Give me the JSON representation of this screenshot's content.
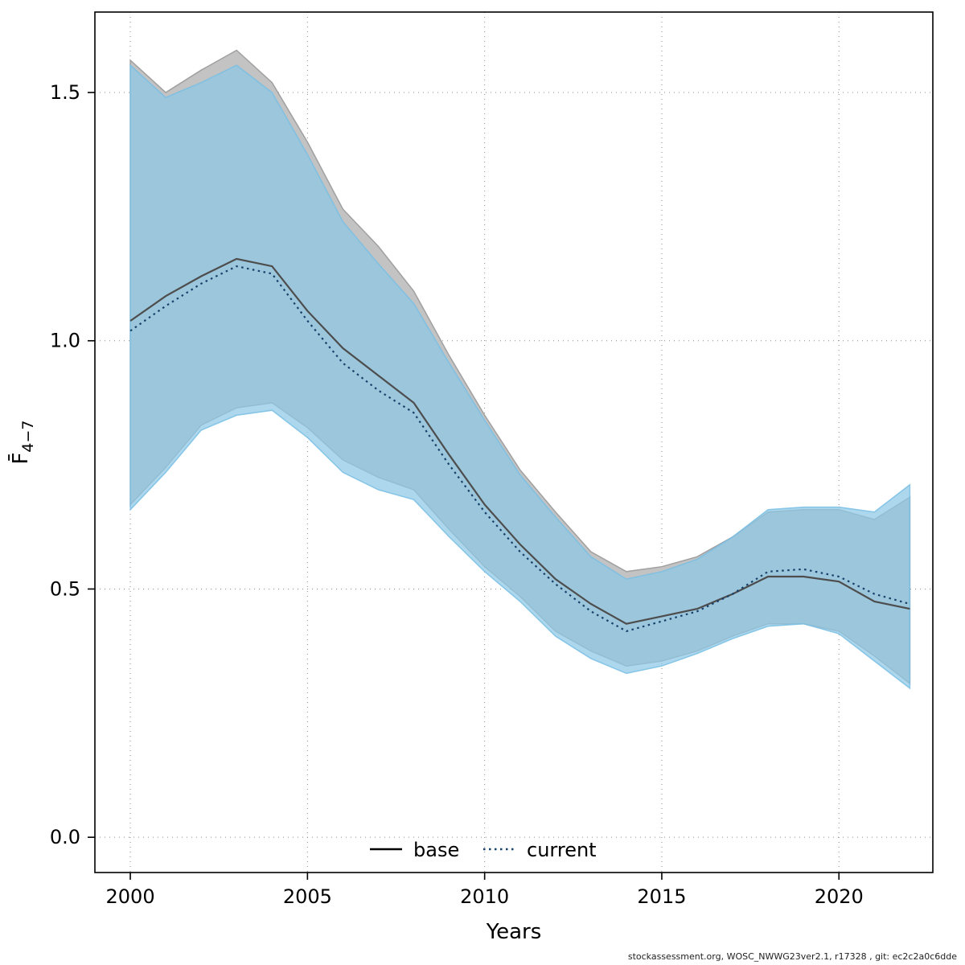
{
  "footer": {
    "credit": "stockassessment.org, WOSC_NWWG23ver2.1, r17328 , git: ec2c2a0c6dde"
  },
  "chart_data": {
    "type": "line",
    "title": "",
    "xlabel": "Years",
    "ylabel_main": "F̄",
    "ylabel_sub": "4−7",
    "x": [
      2000,
      2001,
      2002,
      2003,
      2004,
      2005,
      2006,
      2007,
      2008,
      2009,
      2010,
      2011,
      2012,
      2013,
      2014,
      2015,
      2016,
      2017,
      2018,
      2019,
      2020,
      2021,
      2022
    ],
    "series": [
      {
        "name": "base",
        "line_color": "#4d4d4d",
        "band_fill": "#c3c3c3",
        "band_edge": "#a0a0a0",
        "line_style": "solid",
        "values": [
          1.04,
          1.09,
          1.13,
          1.165,
          1.15,
          1.06,
          0.985,
          0.93,
          0.875,
          0.77,
          0.67,
          0.59,
          0.52,
          0.47,
          0.43,
          0.445,
          0.46,
          0.49,
          0.525,
          0.525,
          0.515,
          0.475,
          0.46
        ],
        "hi": [
          1.565,
          1.5,
          1.545,
          1.585,
          1.52,
          1.4,
          1.265,
          1.19,
          1.1,
          0.97,
          0.85,
          0.74,
          0.655,
          0.575,
          0.535,
          0.545,
          0.565,
          0.605,
          0.655,
          0.66,
          0.66,
          0.64,
          0.685
        ],
        "lo": [
          0.67,
          0.745,
          0.83,
          0.865,
          0.875,
          0.825,
          0.76,
          0.725,
          0.7,
          0.62,
          0.545,
          0.485,
          0.415,
          0.375,
          0.345,
          0.355,
          0.375,
          0.405,
          0.43,
          0.43,
          0.415,
          0.365,
          0.31
        ]
      },
      {
        "name": "current",
        "line_color": "#17406a",
        "band_fill": "rgba(140,200,230,0.72)",
        "band_edge": "rgba(120,190,228,0.85)",
        "line_style": "dotted",
        "values": [
          1.02,
          1.07,
          1.115,
          1.15,
          1.135,
          1.04,
          0.955,
          0.9,
          0.855,
          0.75,
          0.655,
          0.575,
          0.51,
          0.455,
          0.415,
          0.435,
          0.455,
          0.49,
          0.535,
          0.54,
          0.525,
          0.49,
          0.47
        ],
        "hi": [
          1.555,
          1.49,
          1.52,
          1.555,
          1.5,
          1.375,
          1.24,
          1.155,
          1.075,
          0.955,
          0.84,
          0.73,
          0.645,
          0.565,
          0.52,
          0.535,
          0.56,
          0.605,
          0.66,
          0.665,
          0.665,
          0.655,
          0.71
        ],
        "lo": [
          0.66,
          0.735,
          0.82,
          0.85,
          0.86,
          0.805,
          0.735,
          0.7,
          0.68,
          0.605,
          0.535,
          0.475,
          0.405,
          0.36,
          0.33,
          0.345,
          0.37,
          0.4,
          0.425,
          0.43,
          0.41,
          0.355,
          0.3
        ]
      }
    ],
    "x_ticks": [
      2000,
      2005,
      2010,
      2015,
      2020
    ],
    "y_ticks": [
      0.0,
      0.5,
      1.0,
      1.5
    ],
    "xlim": [
      1999.0,
      2022.65
    ],
    "ylim": [
      -0.071,
      1.662
    ],
    "grid": "dotted",
    "legend": {
      "position": "bottom-center",
      "items": [
        "base",
        "current"
      ]
    },
    "colors": {
      "grid": "#8a8a8a",
      "axis": "#000000",
      "text": "#000000"
    }
  }
}
